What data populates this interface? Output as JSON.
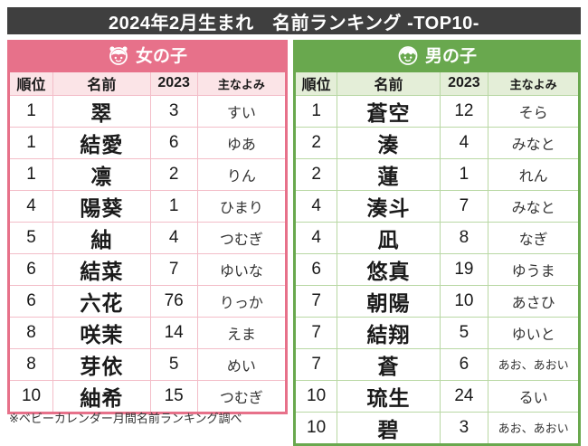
{
  "title": "2024年2月生まれ　名前ランキング -TOP10-",
  "footnote": "※ベビーカレンダー月間名前ランキング調べ",
  "columns": [
    "順位",
    "名前",
    "2023",
    "主なよみ"
  ],
  "colors": {
    "title_bar_bg": "#3f3f3f",
    "title_text": "#ffffff",
    "text": "#1a1a1a",
    "girls_accent": "#e7718a",
    "girls_light": "#fbe4e7",
    "girls_grid": "#f3bdc8",
    "boys_accent": "#69a84e",
    "boys_light": "#e4eed8",
    "boys_grid": "#b9d8a4"
  },
  "girls": {
    "label": "女の子",
    "icon": "girl-face-icon",
    "rows": [
      {
        "rank": "1",
        "name": "翠",
        "y2023": "3",
        "yomi": "すい"
      },
      {
        "rank": "1",
        "name": "結愛",
        "y2023": "6",
        "yomi": "ゆあ"
      },
      {
        "rank": "1",
        "name": "凛",
        "y2023": "2",
        "yomi": "りん"
      },
      {
        "rank": "4",
        "name": "陽葵",
        "y2023": "1",
        "yomi": "ひまり"
      },
      {
        "rank": "5",
        "name": "紬",
        "y2023": "4",
        "yomi": "つむぎ"
      },
      {
        "rank": "6",
        "name": "結菜",
        "y2023": "7",
        "yomi": "ゆいな"
      },
      {
        "rank": "6",
        "name": "六花",
        "y2023": "76",
        "yomi": "りっか"
      },
      {
        "rank": "8",
        "name": "咲茉",
        "y2023": "14",
        "yomi": "えま"
      },
      {
        "rank": "8",
        "name": "芽依",
        "y2023": "5",
        "yomi": "めい"
      },
      {
        "rank": "10",
        "name": "紬希",
        "y2023": "15",
        "yomi": "つむぎ"
      }
    ]
  },
  "boys": {
    "label": "男の子",
    "icon": "boy-face-icon",
    "rows": [
      {
        "rank": "1",
        "name": "蒼空",
        "y2023": "12",
        "yomi": "そら"
      },
      {
        "rank": "2",
        "name": "湊",
        "y2023": "4",
        "yomi": "みなと"
      },
      {
        "rank": "2",
        "name": "蓮",
        "y2023": "1",
        "yomi": "れん"
      },
      {
        "rank": "4",
        "name": "湊斗",
        "y2023": "7",
        "yomi": "みなと"
      },
      {
        "rank": "4",
        "name": "凪",
        "y2023": "8",
        "yomi": "なぎ"
      },
      {
        "rank": "6",
        "name": "悠真",
        "y2023": "19",
        "yomi": "ゆうま"
      },
      {
        "rank": "7",
        "name": "朝陽",
        "y2023": "10",
        "yomi": "あさひ"
      },
      {
        "rank": "7",
        "name": "結翔",
        "y2023": "5",
        "yomi": "ゆいと"
      },
      {
        "rank": "7",
        "name": "蒼",
        "y2023": "6",
        "yomi": "あお、あおい"
      },
      {
        "rank": "10",
        "name": "琉生",
        "y2023": "24",
        "yomi": "るい"
      },
      {
        "rank": "10",
        "name": "碧",
        "y2023": "3",
        "yomi": "あお、あおい"
      }
    ]
  }
}
